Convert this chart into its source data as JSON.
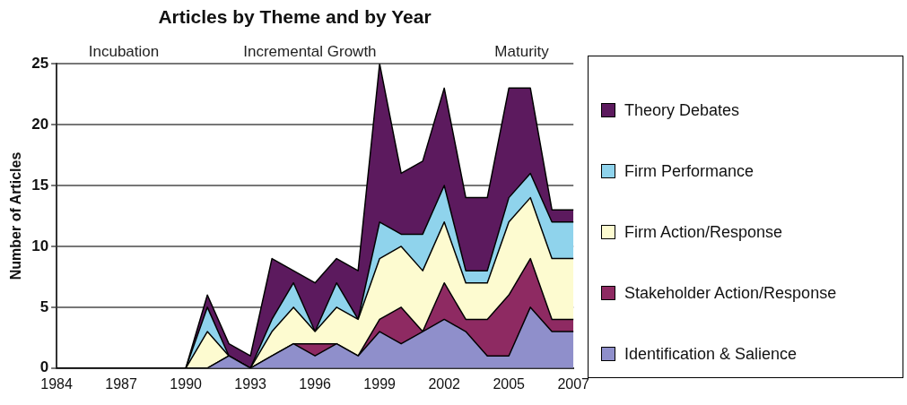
{
  "chart_data": {
    "type": "area",
    "title": "Articles by Theme and by Year",
    "ylabel": "Number of Articles",
    "annotations": [
      "Incubation",
      "Incremental Growth",
      "Maturity"
    ],
    "categories": [
      "1984",
      null,
      null,
      "1987",
      null,
      null,
      "1990",
      null,
      null,
      "1993",
      null,
      null,
      "1996",
      null,
      null,
      "1999",
      null,
      null,
      "2002",
      null,
      null,
      "2005",
      null,
      null,
      "2007"
    ],
    "stacked": true,
    "ylim": [
      0,
      25
    ],
    "yticks": [
      0,
      5,
      10,
      15,
      20,
      25
    ],
    "grid": "y",
    "legend": "right",
    "series": [
      {
        "name": "Identification & Salience",
        "color": "#8f8fcb",
        "values": [
          0,
          0,
          0,
          0,
          0,
          0,
          0,
          0,
          1,
          0,
          1,
          2,
          1,
          2,
          1,
          3,
          2,
          3,
          4,
          3,
          1,
          1,
          5,
          3,
          3
        ]
      },
      {
        "name": "Stakeholder Action/Response",
        "color": "#8e2a62",
        "values": [
          0,
          0,
          0,
          0,
          0,
          0,
          0,
          0,
          0,
          0,
          0,
          0,
          1,
          0,
          0,
          1,
          3,
          0,
          3,
          1,
          3,
          5,
          4,
          1,
          1
        ]
      },
      {
        "name": "Firm Action/Response",
        "color": "#fdfbd0",
        "values": [
          0,
          0,
          0,
          0,
          0,
          0,
          0,
          3,
          0,
          0,
          2,
          3,
          1,
          3,
          3,
          5,
          5,
          5,
          5,
          3,
          3,
          6,
          5,
          5,
          5
        ]
      },
      {
        "name": "Firm Performance",
        "color": "#8fd3ec",
        "values": [
          0,
          0,
          0,
          0,
          0,
          0,
          0,
          2,
          0,
          0,
          1,
          2,
          0,
          2,
          0,
          3,
          1,
          3,
          3,
          1,
          1,
          2,
          2,
          3,
          3
        ]
      },
      {
        "name": "Theory Debates",
        "color": "#5c1a5e",
        "values": [
          0,
          0,
          0,
          0,
          0,
          0,
          0,
          1,
          1,
          1,
          5,
          1,
          4,
          2,
          4,
          13,
          5,
          6,
          8,
          6,
          6,
          9,
          7,
          1,
          1
        ]
      }
    ]
  }
}
